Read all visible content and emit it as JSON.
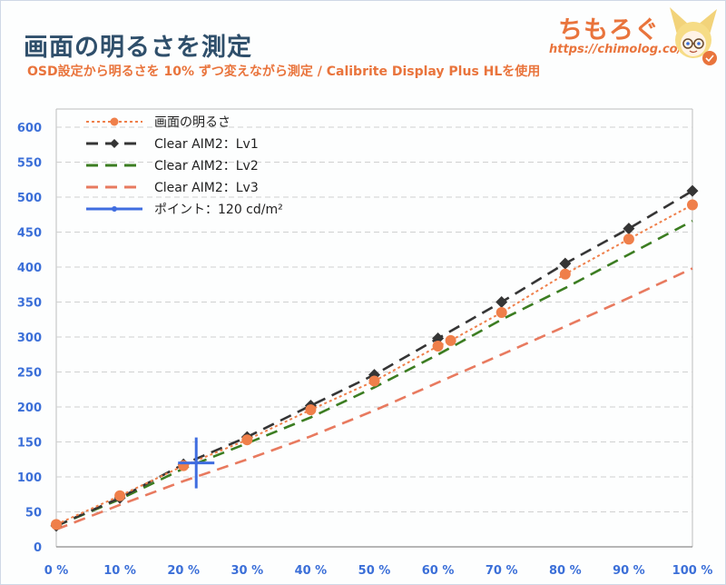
{
  "header": {
    "title": "画面の明るさを測定",
    "subtitle": "OSD設定から明るさを 10% ずつ変えながら測定 / Calibrite Display Plus HLを使用"
  },
  "logo": {
    "text": "ちもろぐ",
    "url": "https://chimolog.co/"
  },
  "colors": {
    "title": "#2f4f6b",
    "accent": "#e9743c",
    "axis_tick": "#3b6fd8",
    "grid": "#d0d0d0"
  },
  "chart_data": {
    "type": "line",
    "title": "",
    "xlabel": "",
    "ylabel": "",
    "xlim": [
      0,
      100
    ],
    "ylim": [
      0,
      600
    ],
    "x_ticks": [
      0,
      10,
      20,
      30,
      40,
      50,
      60,
      70,
      80,
      90,
      100
    ],
    "x_tick_labels": [
      "0 %",
      "10 %",
      "20 %",
      "30 %",
      "40 %",
      "50 %",
      "60 %",
      "70 %",
      "80 %",
      "90 %",
      "100 %"
    ],
    "y_ticks": [
      0,
      50,
      100,
      150,
      200,
      250,
      300,
      350,
      400,
      450,
      500,
      550,
      600
    ],
    "y_tick_labels": [
      "0",
      "50",
      "100",
      "150",
      "200",
      "250",
      "300",
      "350",
      "400",
      "450",
      "500",
      "550",
      "600"
    ],
    "grid": "horizontal dashed",
    "legend_position": "top-left",
    "series": [
      {
        "name": "画面の明るさ",
        "color": "#ef7f4a",
        "style": "dotted",
        "marker": "circle",
        "points": [
          [
            0,
            32
          ],
          [
            10,
            73
          ],
          [
            20,
            116
          ],
          [
            30,
            153
          ],
          [
            40,
            196
          ],
          [
            50,
            237
          ],
          [
            60,
            287
          ],
          [
            62,
            295
          ],
          [
            70,
            335
          ],
          [
            80,
            390
          ],
          [
            90,
            440
          ],
          [
            100,
            489
          ]
        ]
      },
      {
        "name": "Clear AIM2：Lv1",
        "color": "#353535",
        "style": "dashed",
        "marker": "diamond",
        "points": [
          [
            0,
            30
          ],
          [
            10,
            70
          ],
          [
            20,
            118
          ],
          [
            30,
            157
          ],
          [
            40,
            202
          ],
          [
            50,
            246
          ],
          [
            60,
            298
          ],
          [
            70,
            350
          ],
          [
            80,
            405
          ],
          [
            90,
            455
          ],
          [
            100,
            509
          ]
        ]
      },
      {
        "name": "Clear AIM2：Lv2",
        "color": "#3c7d22",
        "style": "dashed",
        "marker": "none",
        "points": [
          [
            0,
            30
          ],
          [
            10,
            68
          ],
          [
            20,
            112
          ],
          [
            30,
            148
          ],
          [
            40,
            185
          ],
          [
            50,
            228
          ],
          [
            60,
            275
          ],
          [
            70,
            325
          ],
          [
            80,
            370
          ],
          [
            90,
            418
          ],
          [
            100,
            466
          ]
        ]
      },
      {
        "name": "Clear AIM2：Lv3",
        "color": "#e87a5f",
        "style": "dashed",
        "marker": "none",
        "points": [
          [
            0,
            25
          ],
          [
            10,
            60
          ],
          [
            20,
            94
          ],
          [
            30,
            125
          ],
          [
            40,
            158
          ],
          [
            50,
            195
          ],
          [
            60,
            235
          ],
          [
            70,
            275
          ],
          [
            80,
            315
          ],
          [
            90,
            356
          ],
          [
            100,
            398
          ]
        ]
      },
      {
        "name": "ポイント：120 cd/m²",
        "color": "#3f6de0",
        "style": "solid",
        "marker": "cross",
        "points": [
          [
            22,
            120
          ]
        ]
      }
    ]
  }
}
